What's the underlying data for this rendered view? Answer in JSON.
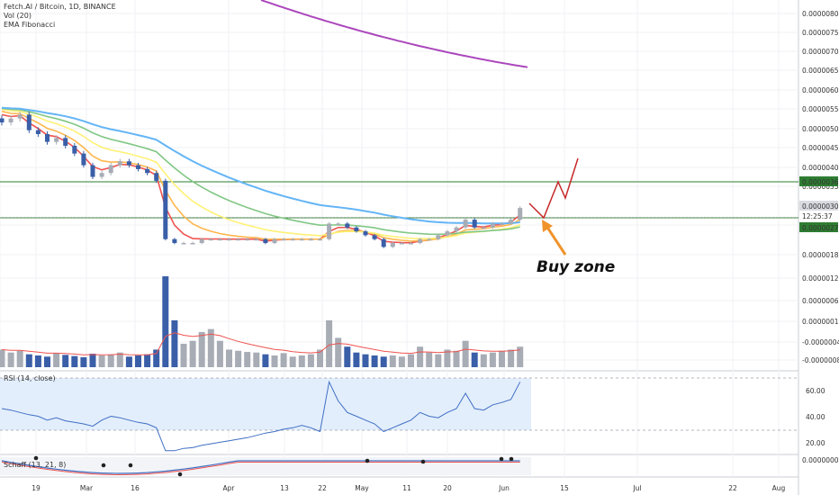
{
  "header": {
    "symbol_line": "Fetch.AI / Bitcoin, 1D, BINANCE",
    "vol_label": "Vol (20)",
    "ema_label": "EMA Fibonacci"
  },
  "panels": {
    "rsi_label": "RSI (14, close)",
    "bottom_label": "Schaff (13, 21, 8)"
  },
  "annotation": {
    "text": "Buy zone"
  },
  "colors": {
    "up": "#26a69a",
    "down": "#3a5fa8",
    "bar_up": "#a7acb5",
    "ema1": "#ef5350",
    "ema2": "#ffb74d",
    "ema3": "#fff176",
    "ema4": "#81c784",
    "ema5": "#64b5f6",
    "ema6": "#ab47bc",
    "hline": "#2e7d32",
    "arrow": "#f0932b",
    "path": "#c62828",
    "rsi_fill": "#e3eefc",
    "rsi_line": "#3f6fc4"
  },
  "chart_data": {
    "type": "candlestick",
    "price_axis": {
      "ticks": [
        "0.00000800",
        "0.00000750",
        "0.00000700",
        "0.00000650",
        "0.00000600",
        "0.00000550",
        "0.00000500",
        "0.00000450",
        "0.00000400",
        "0.00000350",
        "0.00000303",
        "0.00000250",
        "0.00000180",
        "0.00000120",
        "0.00000060",
        "0.00000010",
        "-0.00000040",
        "-0.00000085"
      ],
      "badges": [
        {
          "text": "0.00000360",
          "kind": "green"
        },
        {
          "text": "0.00000303",
          "kind": "grey"
        },
        {
          "text": "12:25:37",
          "kind": "plain"
        },
        {
          "text": "0.00000270",
          "kind": "green"
        }
      ]
    },
    "time_axis": [
      "19",
      "Mar",
      "16",
      "Apr",
      "13",
      "22",
      "May",
      "11",
      "20",
      "Jun",
      "15",
      "Jul",
      "22",
      "Aug"
    ],
    "rsi_axis": [
      "60.00",
      "40.00",
      "20.00"
    ],
    "bottom_axis": [
      "0.00000000"
    ],
    "horizontal_levels": [
      3.6e-06,
      2.7e-06
    ],
    "candles_close": [
      5.2e-06,
      5.3e-06,
      5.4e-06,
      5e-06,
      4.9e-06,
      4.7e-06,
      4.8e-06,
      4.6e-06,
      4.4e-06,
      4.1e-06,
      3.8e-06,
      3.9e-06,
      4.1e-06,
      4.2e-06,
      4.1e-06,
      4e-06,
      3.9e-06,
      3.7e-06,
      2.2e-06,
      2.1e-06,
      2.1e-06,
      2.1e-06,
      2.2e-06,
      2.2e-06,
      2.2e-06,
      2.2e-06,
      2.2e-06,
      2.2e-06,
      2.2e-06,
      2.1e-06,
      2.2e-06,
      2.2e-06,
      2.2e-06,
      2.2e-06,
      2.2e-06,
      2.2e-06,
      2.6e-06,
      2.6e-06,
      2.5e-06,
      2.4e-06,
      2.3e-06,
      2.2e-06,
      2e-06,
      2.1e-06,
      2.1e-06,
      2.1e-06,
      2.2e-06,
      2.2e-06,
      2.3e-06,
      2.4e-06,
      2.5e-06,
      2.7e-06,
      2.5e-06,
      2.5e-06,
      2.6e-06,
      2.6e-06,
      2.7e-06,
      3e-06
    ],
    "volume_values": [
      3e-07,
      2.5e-07,
      2.8e-07,
      2.2e-07,
      2e-07,
      1.8e-07,
      2.4e-07,
      2.1e-07,
      1.9e-07,
      1.7e-07,
      2.3e-07,
      2e-07,
      2.2e-07,
      2.5e-07,
      1.8e-07,
      2e-07,
      2.2e-07,
      3e-07,
      1.55e-06,
      8e-07,
      4e-07,
      4.5e-07,
      6e-07,
      6.5e-07,
      4.5e-07,
      3e-07,
      2.8e-07,
      2.6e-07,
      2.5e-07,
      2.2e-07,
      2e-07,
      2.4e-07,
      1.8e-07,
      2e-07,
      2.2e-07,
      3e-07,
      8e-07,
      5e-07,
      3.5e-07,
      2.5e-07,
      2.2e-07,
      2e-07,
      1.8e-07,
      2e-07,
      1.8e-07,
      2.2e-07,
      3.5e-07,
      2.5e-07,
      2.2e-07,
      3e-07,
      2.8e-07,
      4.5e-07,
      2.5e-07,
      2.2e-07,
      2.5e-07,
      2.8e-07,
      3e-07,
      3.5e-07
    ]
  }
}
